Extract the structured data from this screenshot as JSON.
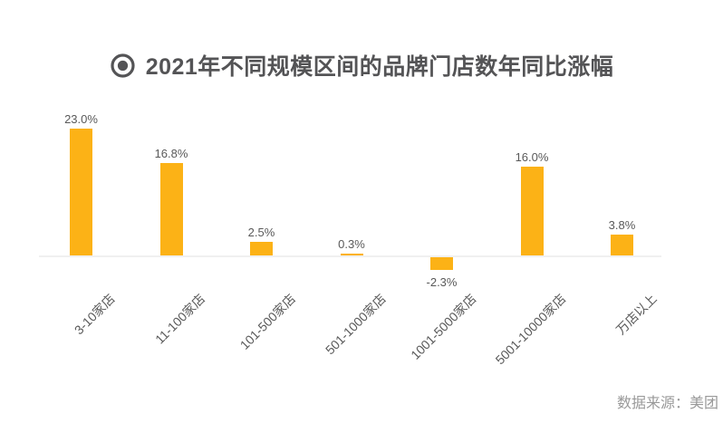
{
  "header": {
    "icon": "bullseye-icon",
    "title": "2021年不同规模区间的品牌门店数年同比涨幅"
  },
  "footer": {
    "source": "数据来源：美团"
  },
  "colors": {
    "bar": "#FCB216",
    "axis_line": "#F0F0F0",
    "title_text": "#545456",
    "label_text": "#595959",
    "source_text": "#999999"
  },
  "chart_data": {
    "type": "bar",
    "title": "2021年不同规模区间的品牌门店数年同比涨幅",
    "categories": [
      "3-10家店",
      "11-100家店",
      "101-500家店",
      "501-1000家店",
      "1001-5000家店",
      "5001-10000家店",
      "万店以上"
    ],
    "values": [
      23.0,
      16.8,
      2.5,
      0.3,
      -2.3,
      16.0,
      3.8
    ],
    "value_labels": [
      "23.0%",
      "16.8%",
      "2.5%",
      "0.3%",
      "-2.3%",
      "16.0%",
      "3.8%"
    ],
    "xlabel": "",
    "ylabel": "",
    "ylim": [
      -4,
      25
    ],
    "grid": false,
    "legend": "none",
    "bar_color": "#FCB216",
    "source": "数据来源：美团"
  }
}
